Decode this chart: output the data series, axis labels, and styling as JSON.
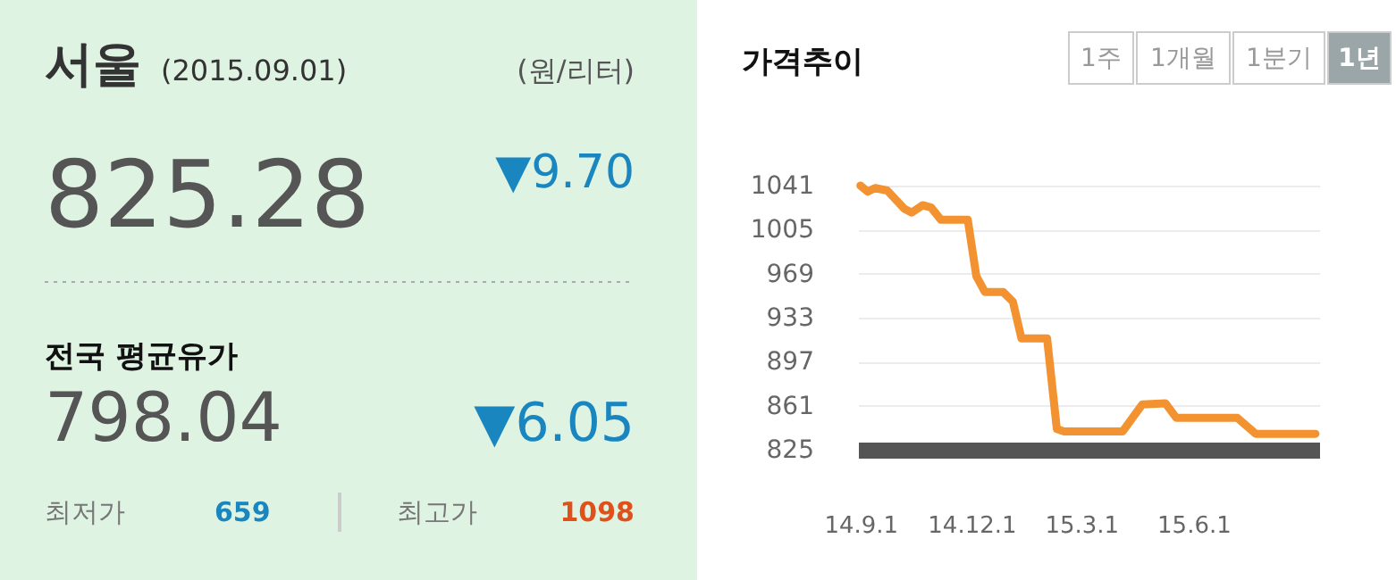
{
  "chart_data": [
    {
      "type": "other",
      "annotations": [
        "서울",
        "(2015.09.01)",
        "(원/리터)",
        "825.28",
        "▼9.70",
        "전국 평균유가",
        "798.04",
        "▼6.05",
        "최저가",
        "659",
        "최고가",
        "1098"
      ]
    },
    {
      "type": "line",
      "title": "가격추이",
      "annotations": [
        "1주",
        "1개월",
        "1분기",
        "1년"
      ],
      "x": [
        "2014-09-01",
        "2014-09-07",
        "2014-09-13",
        "2014-09-23",
        "2014-10-07",
        "2014-10-13",
        "2014-10-22",
        "2014-10-29",
        "2014-11-06",
        "2014-11-28",
        "2014-12-05",
        "2014-12-12",
        "2014-12-27",
        "2015-01-04",
        "2015-01-11",
        "2015-02-01",
        "2015-02-09",
        "2015-02-15",
        "2015-04-04",
        "2015-04-20",
        "2015-05-09",
        "2015-05-18",
        "2015-07-07",
        "2015-07-22",
        "2015-09-09"
      ],
      "series": [
        {
          "color": "#f39230",
          "values": [
            1041,
            1036,
            1039,
            1037,
            1022,
            1019,
            1025,
            1023,
            1013,
            1013,
            967,
            954,
            954,
            946,
            916,
            916,
            842,
            840,
            840,
            862,
            863,
            851,
            851,
            838,
            838
          ]
        }
      ],
      "xlim": [
        "2014-08-30",
        "2015-09-12"
      ],
      "ylim": [
        825,
        1041
      ],
      "xticks": [
        {
          "value": "2014-09-01",
          "label": "14.9.1"
        },
        {
          "value": "2014-12-01",
          "label": "14.12.1"
        },
        {
          "value": "2015-03-01",
          "label": "15.3.1"
        },
        {
          "value": "2015-06-01",
          "label": "15.6.1"
        }
      ],
      "yticks": [
        825,
        861,
        897,
        933,
        969,
        1005,
        1041
      ],
      "grid": "y",
      "marker": "none",
      "line_style": "solid"
    }
  ]
}
